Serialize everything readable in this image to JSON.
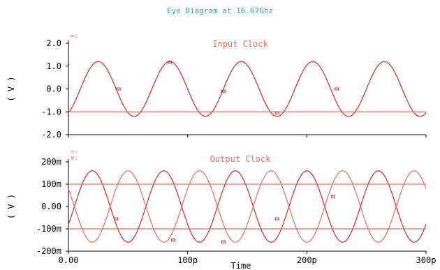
{
  "title": "Eye Diagram at 16.67Ghz",
  "x_axis_label": "Time",
  "colors": {
    "title": "#2db389",
    "trace": "#cc2a2a",
    "trace_light": "#e07060",
    "label": "#e07060",
    "axis": "#000000"
  },
  "chart_data": [
    {
      "type": "line",
      "title": "Input Clock",
      "legend_markers": [
        "=:"
      ],
      "ylabel": "( V )",
      "xlim": [
        0,
        300
      ],
      "ylim": [
        -2.0,
        2.0
      ],
      "x_ticks": [
        {
          "v": 0,
          "label": "0.00"
        },
        {
          "v": 100,
          "label": "100p"
        },
        {
          "v": 200,
          "label": "200p"
        },
        {
          "v": 300,
          "label": "300p"
        }
      ],
      "y_ticks": [
        {
          "v": 2.0,
          "label": "2.0"
        },
        {
          "v": 1.0,
          "label": "1.0"
        },
        {
          "v": 0.0,
          "label": "0.0"
        },
        {
          "v": -1.0,
          "label": "-1.0"
        },
        {
          "v": -2.0,
          "label": "-2.0"
        }
      ],
      "series": [
        {
          "kind": "sine",
          "amplitude": 1.2,
          "offset": 0.0,
          "period": 60,
          "peak_x": 25
        },
        {
          "kind": "flat",
          "y": -1.0,
          "x_range": [
            0,
            300
          ]
        }
      ],
      "markers": [
        {
          "x": 42,
          "y": 0.0
        },
        {
          "x": 85,
          "y": 1.18
        },
        {
          "x": 130,
          "y": -0.1
        },
        {
          "x": 175,
          "y": -1.05
        },
        {
          "x": 225,
          "y": 0.0
        }
      ]
    },
    {
      "type": "line",
      "title": "Output Clock",
      "legend_markers": [
        "=:",
        "x:"
      ],
      "ylabel": "( V )",
      "xlim": [
        0,
        300
      ],
      "ylim": [
        -200,
        200
      ],
      "y_unit": "mV",
      "x_ticks": [
        {
          "v": 0,
          "label": "0.00"
        },
        {
          "v": 100,
          "label": "100p"
        },
        {
          "v": 200,
          "label": "200p"
        },
        {
          "v": 300,
          "label": "300p"
        }
      ],
      "y_ticks": [
        {
          "v": 200,
          "label": "200m"
        },
        {
          "v": 100,
          "label": "100m"
        },
        {
          "v": 0,
          "label": "0.00"
        },
        {
          "v": -100,
          "label": "-100m"
        },
        {
          "v": -200,
          "label": "-200m"
        }
      ],
      "series": [
        {
          "kind": "sine",
          "amplitude": 160,
          "offset": 0,
          "period": 60,
          "peak_x": 20
        },
        {
          "kind": "sine",
          "amplitude": 160,
          "offset": 0,
          "period": 60,
          "peak_x": 50
        },
        {
          "kind": "flat",
          "y": 100,
          "x_range": [
            0,
            300
          ]
        },
        {
          "kind": "flat",
          "y": -100,
          "x_range": [
            0,
            300
          ]
        }
      ],
      "markers": [
        {
          "x": 40,
          "y": -55
        },
        {
          "x": 88,
          "y": -150
        },
        {
          "x": 130,
          "y": -158
        },
        {
          "x": 175,
          "y": -55
        },
        {
          "x": 222,
          "y": 45
        }
      ]
    }
  ]
}
